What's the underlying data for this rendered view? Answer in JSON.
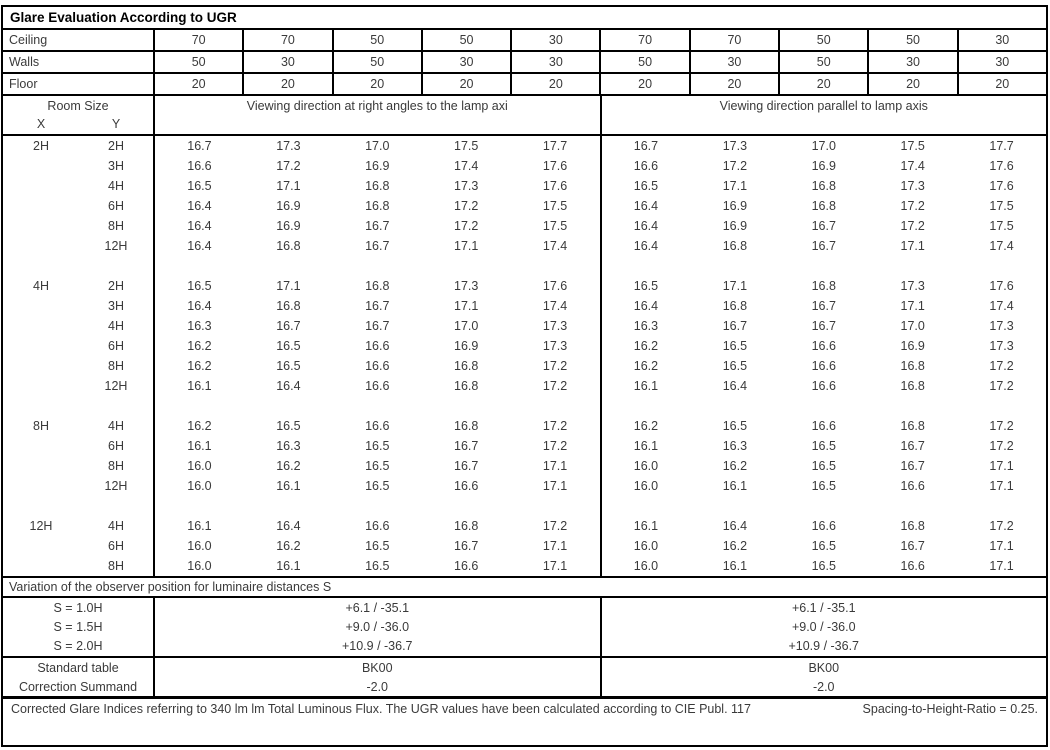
{
  "title": "Glare Evaluation According to UGR",
  "colors": {
    "border": "#000000",
    "text": "#3a3a3a",
    "background": "#ffffff"
  },
  "surface_reflectance_rows": [
    {
      "label": "Ceiling",
      "values": [
        "70",
        "70",
        "50",
        "50",
        "30",
        "70",
        "70",
        "50",
        "50",
        "30"
      ]
    },
    {
      "label": "Walls",
      "values": [
        "50",
        "30",
        "50",
        "30",
        "30",
        "50",
        "30",
        "50",
        "30",
        "30"
      ]
    },
    {
      "label": "Floor",
      "values": [
        "20",
        "20",
        "20",
        "20",
        "20",
        "20",
        "20",
        "20",
        "20",
        "20"
      ]
    }
  ],
  "header": {
    "room_size_label": "Room Size",
    "x_label": "X",
    "y_label": "Y",
    "left_group_label": "Viewing direction at right angles to the lamp axi",
    "right_group_label": "Viewing direction parallel to lamp axis"
  },
  "ugr_rows": [
    {
      "x": "2H",
      "y": "2H",
      "left": [
        "16.7",
        "17.3",
        "17.0",
        "17.5",
        "17.7"
      ],
      "right": [
        "16.7",
        "17.3",
        "17.0",
        "17.5",
        "17.7"
      ]
    },
    {
      "x": "",
      "y": "3H",
      "left": [
        "16.6",
        "17.2",
        "16.9",
        "17.4",
        "17.6"
      ],
      "right": [
        "16.6",
        "17.2",
        "16.9",
        "17.4",
        "17.6"
      ]
    },
    {
      "x": "",
      "y": "4H",
      "left": [
        "16.5",
        "17.1",
        "16.8",
        "17.3",
        "17.6"
      ],
      "right": [
        "16.5",
        "17.1",
        "16.8",
        "17.3",
        "17.6"
      ]
    },
    {
      "x": "",
      "y": "6H",
      "left": [
        "16.4",
        "16.9",
        "16.8",
        "17.2",
        "17.5"
      ],
      "right": [
        "16.4",
        "16.9",
        "16.8",
        "17.2",
        "17.5"
      ]
    },
    {
      "x": "",
      "y": "8H",
      "left": [
        "16.4",
        "16.9",
        "16.7",
        "17.2",
        "17.5"
      ],
      "right": [
        "16.4",
        "16.9",
        "16.7",
        "17.2",
        "17.5"
      ]
    },
    {
      "x": "",
      "y": "12H",
      "left": [
        "16.4",
        "16.8",
        "16.7",
        "17.1",
        "17.4"
      ],
      "right": [
        "16.4",
        "16.8",
        "16.7",
        "17.1",
        "17.4"
      ]
    },
    {
      "gap": true
    },
    {
      "x": "4H",
      "y": "2H",
      "left": [
        "16.5",
        "17.1",
        "16.8",
        "17.3",
        "17.6"
      ],
      "right": [
        "16.5",
        "17.1",
        "16.8",
        "17.3",
        "17.6"
      ]
    },
    {
      "x": "",
      "y": "3H",
      "left": [
        "16.4",
        "16.8",
        "16.7",
        "17.1",
        "17.4"
      ],
      "right": [
        "16.4",
        "16.8",
        "16.7",
        "17.1",
        "17.4"
      ]
    },
    {
      "x": "",
      "y": "4H",
      "left": [
        "16.3",
        "16.7",
        "16.7",
        "17.0",
        "17.3"
      ],
      "right": [
        "16.3",
        "16.7",
        "16.7",
        "17.0",
        "17.3"
      ]
    },
    {
      "x": "",
      "y": "6H",
      "left": [
        "16.2",
        "16.5",
        "16.6",
        "16.9",
        "17.3"
      ],
      "right": [
        "16.2",
        "16.5",
        "16.6",
        "16.9",
        "17.3"
      ]
    },
    {
      "x": "",
      "y": "8H",
      "left": [
        "16.2",
        "16.5",
        "16.6",
        "16.8",
        "17.2"
      ],
      "right": [
        "16.2",
        "16.5",
        "16.6",
        "16.8",
        "17.2"
      ]
    },
    {
      "x": "",
      "y": "12H",
      "left": [
        "16.1",
        "16.4",
        "16.6",
        "16.8",
        "17.2"
      ],
      "right": [
        "16.1",
        "16.4",
        "16.6",
        "16.8",
        "17.2"
      ]
    },
    {
      "gap": true
    },
    {
      "x": "8H",
      "y": "4H",
      "left": [
        "16.2",
        "16.5",
        "16.6",
        "16.8",
        "17.2"
      ],
      "right": [
        "16.2",
        "16.5",
        "16.6",
        "16.8",
        "17.2"
      ]
    },
    {
      "x": "",
      "y": "6H",
      "left": [
        "16.1",
        "16.3",
        "16.5",
        "16.7",
        "17.2"
      ],
      "right": [
        "16.1",
        "16.3",
        "16.5",
        "16.7",
        "17.2"
      ]
    },
    {
      "x": "",
      "y": "8H",
      "left": [
        "16.0",
        "16.2",
        "16.5",
        "16.7",
        "17.1"
      ],
      "right": [
        "16.0",
        "16.2",
        "16.5",
        "16.7",
        "17.1"
      ]
    },
    {
      "x": "",
      "y": "12H",
      "left": [
        "16.0",
        "16.1",
        "16.5",
        "16.6",
        "17.1"
      ],
      "right": [
        "16.0",
        "16.1",
        "16.5",
        "16.6",
        "17.1"
      ]
    },
    {
      "gap": true
    },
    {
      "x": "12H",
      "y": "4H",
      "left": [
        "16.1",
        "16.4",
        "16.6",
        "16.8",
        "17.2"
      ],
      "right": [
        "16.1",
        "16.4",
        "16.6",
        "16.8",
        "17.2"
      ]
    },
    {
      "x": "",
      "y": "6H",
      "left": [
        "16.0",
        "16.2",
        "16.5",
        "16.7",
        "17.1"
      ],
      "right": [
        "16.0",
        "16.2",
        "16.5",
        "16.7",
        "17.1"
      ]
    },
    {
      "x": "",
      "y": "8H",
      "left": [
        "16.0",
        "16.1",
        "16.5",
        "16.6",
        "17.1"
      ],
      "right": [
        "16.0",
        "16.1",
        "16.5",
        "16.6",
        "17.1"
      ]
    }
  ],
  "variation_section": {
    "heading": "Variation of the observer position for luminaire distances S",
    "rows": [
      {
        "label": "S = 1.0H",
        "left": "+6.1 / -35.1",
        "right": "+6.1 / -35.1"
      },
      {
        "label": "S = 1.5H",
        "left": "+9.0 / -36.0",
        "right": "+9.0 / -36.0"
      },
      {
        "label": "S = 2.0H",
        "left": "+10.9 / -36.7",
        "right": "+10.9 / -36.7"
      }
    ]
  },
  "summary_rows": [
    {
      "label": "Standard table",
      "left": "BK00",
      "right": "BK00"
    },
    {
      "label": "Correction Summand",
      "left": "-2.0",
      "right": "-2.0"
    }
  ],
  "footer": {
    "note": "Corrected Glare Indices referring to 340 lm lm Total Luminous Flux. The UGR values have been calculated according to CIE Publ. 117",
    "ratio": "Spacing-to-Height-Ratio = 0.25."
  }
}
